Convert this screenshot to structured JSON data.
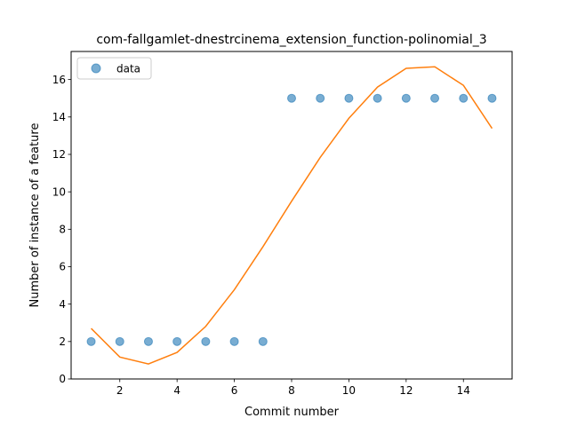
{
  "chart_data": {
    "type": "scatter",
    "title": "com-fallgamlet-dnestrcinema_extension_function-polinomial_3",
    "xlabel": "Commit number",
    "ylabel": "Number of instance of a feature",
    "xlim": [
      0.3,
      15.7
    ],
    "ylim": [
      0,
      17.5
    ],
    "xticks": [
      2,
      4,
      6,
      8,
      10,
      12,
      14
    ],
    "yticks": [
      0,
      2,
      4,
      6,
      8,
      10,
      12,
      14,
      16
    ],
    "grid": false,
    "legend_position": "top-left",
    "series": [
      {
        "name": "data",
        "kind": "scatter",
        "color": "#1f77b4",
        "x": [
          1,
          2,
          3,
          4,
          5,
          6,
          7,
          8,
          9,
          10,
          11,
          12,
          13,
          14,
          15
        ],
        "y": [
          2,
          2,
          2,
          2,
          2,
          2,
          2,
          15,
          15,
          15,
          15,
          15,
          15,
          15,
          15
        ]
      },
      {
        "kind": "line",
        "color": "#ff7f0e",
        "x": [
          1,
          2,
          3,
          4,
          5,
          6,
          7,
          8,
          9,
          10,
          11,
          12,
          13,
          14,
          15
        ],
        "y": [
          2.7,
          1.17,
          0.8,
          1.42,
          2.81,
          4.77,
          7.07,
          9.5,
          11.84,
          13.93,
          15.6,
          16.6,
          16.68,
          15.69,
          13.39
        ]
      }
    ]
  }
}
